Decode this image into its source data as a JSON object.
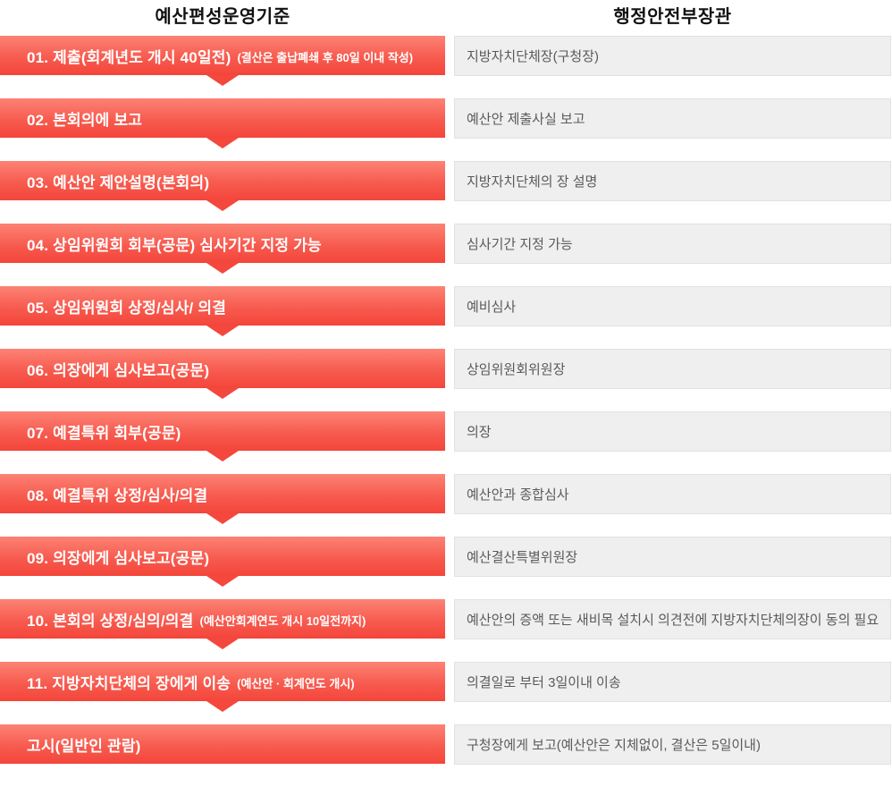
{
  "headers": {
    "left": "예산편성운영기준",
    "right": "행정안전부장관"
  },
  "colors": {
    "banner_gradient_top": "#fc8375",
    "banner_gradient_bottom": "#f4453b",
    "arrow": "#f4473d",
    "banner_text": "#ffffff",
    "box_background": "#f0efef",
    "box_border": "#e2e1e1",
    "box_text": "#5a5a5a",
    "header_text": "#111111"
  },
  "rows": [
    {
      "step": "01. 제출(회계년도 개시 40일전)",
      "note": "(결산은 출납폐쇄 후 80일 이내 작성)",
      "detail": "지방자치단체장(구청장)",
      "has_arrow": true
    },
    {
      "step": "02. 본회의에 보고",
      "note": "",
      "detail": "예산안 제출사실 보고",
      "has_arrow": true
    },
    {
      "step": "03. 예산안 제안설명(본회의)",
      "note": "",
      "detail": "지방자치단체의 장 설명",
      "has_arrow": true
    },
    {
      "step": "04. 상임위원회 회부(공문) 심사기간 지정 가능",
      "note": "",
      "detail": "심사기간 지정 가능",
      "has_arrow": true
    },
    {
      "step": "05. 상임위원회 상정/심사/ 의결",
      "note": "",
      "detail": "예비심사",
      "has_arrow": true
    },
    {
      "step": "06. 의장에게 심사보고(공문)",
      "note": "",
      "detail": "상임위원회위원장",
      "has_arrow": true
    },
    {
      "step": "07. 예결특위 회부(공문)",
      "note": "",
      "detail": "의장",
      "has_arrow": true
    },
    {
      "step": "08. 예결특위 상정/심사/의결",
      "note": "",
      "detail": "예산안과 종합심사",
      "has_arrow": true
    },
    {
      "step": "09. 의장에게 심사보고(공문)",
      "note": "",
      "detail": "예산결산특별위원장",
      "has_arrow": true
    },
    {
      "step": "10. 본회의 상정/심의/의결",
      "note": "(예산안회계연도 개시 10일전까지)",
      "detail": "예산안의 증액 또는 새비목 설치시 의견전에 지방자치단체의장이 동의 필요",
      "has_arrow": true
    },
    {
      "step": "11. 지방자치단체의 장에게 이송",
      "note": "(예산안 · 회계연도 개시)",
      "detail": "의결일로 부터 3일이내 이송",
      "has_arrow": true
    },
    {
      "step": "고시(일반인 관람)",
      "note": "",
      "detail": "구청장에게 보고(예산안은 지체없이, 결산은 5일이내)",
      "has_arrow": false
    }
  ]
}
